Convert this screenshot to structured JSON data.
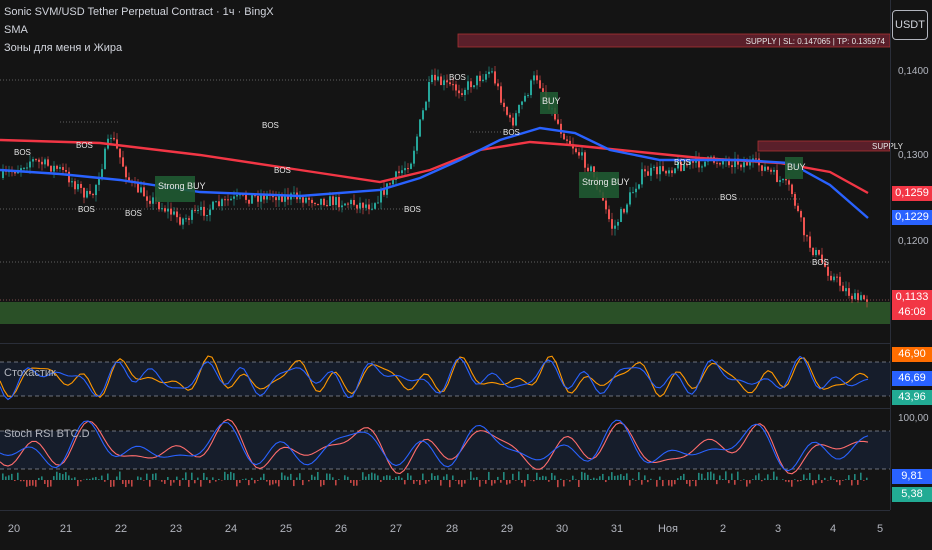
{
  "header": {
    "title": "Sonic SVM/USD Tether Perpetual Contract · 1ч · BingX",
    "indicator1": "SMA",
    "indicator2": "Зоны для меня и Жира"
  },
  "currency_button": "USDT",
  "price_axis": {
    "labels": [
      "0,1400",
      "0,1300",
      "0,1200"
    ],
    "badges": [
      {
        "text": "0,1259",
        "color": "#f23645"
      },
      {
        "text": "0,1229",
        "color": "#2962ff"
      },
      {
        "text": "0,1133",
        "color": "#f23645"
      },
      {
        "text": "46:08",
        "color": "#f23645"
      }
    ]
  },
  "zones": {
    "supply_main": "SUPPLY | SL: 0.147065 | TP: 0.135974",
    "supply_right": "SUPPLY"
  },
  "annotations": {
    "bos": "BOS",
    "strong_buy": "Strong BUY",
    "buy": "BUY"
  },
  "stochastic": {
    "label": "Стохастик",
    "badges": [
      {
        "text": "46,90",
        "color": "#ff6d00"
      },
      {
        "text": "46,69",
        "color": "#2962ff"
      },
      {
        "text": "43,96",
        "color": "#22ab94"
      }
    ]
  },
  "stoch_rsi": {
    "label": "Stoch RSI BTC.D",
    "axis_label": "100,00",
    "badges": [
      {
        "text": "9,81",
        "color": "#2962ff"
      },
      {
        "text": "5,38",
        "color": "#22ab94"
      }
    ]
  },
  "time_axis": [
    "20",
    "21",
    "22",
    "23",
    "24",
    "25",
    "26",
    "27",
    "28",
    "29",
    "30",
    "31",
    "Ноя",
    "2",
    "3",
    "4",
    "5"
  ],
  "colors": {
    "up": "#26a69a",
    "down": "#ef5350",
    "sma_fast": "#2962ff",
    "sma_slow": "#f23645",
    "demand_zone": "#2e5a2a",
    "supply_zone": "#5a1f2a"
  }
}
